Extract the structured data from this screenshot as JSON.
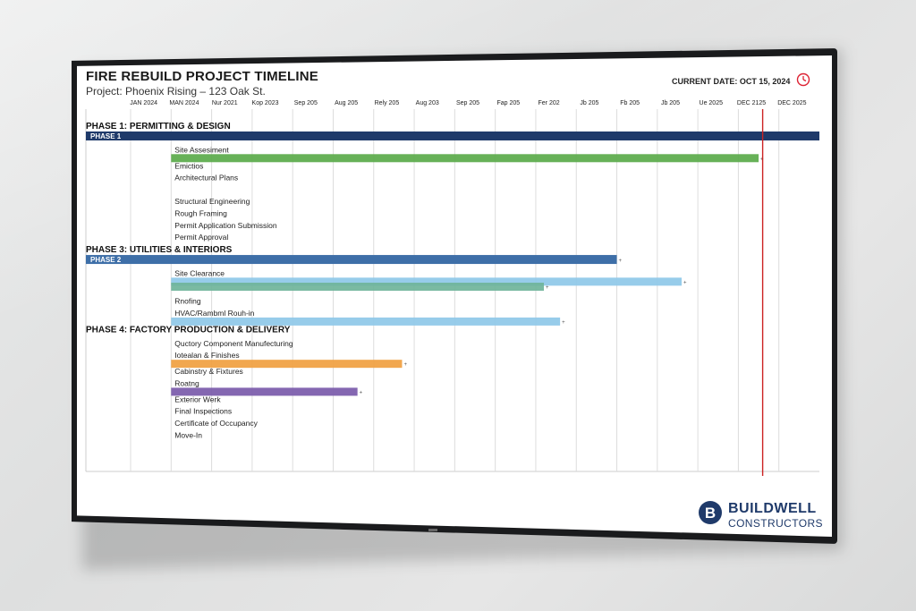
{
  "header": {
    "title": "FIRE REBUILD PROJECT TIMELINE",
    "subtitle": "Project: Phoenix Rising – 123 Oak St.",
    "current_date": "CURRENT DATE: OCT 15, 2024"
  },
  "brand": {
    "logo_letter": "B",
    "name_line1": "BUILDWELL",
    "name_line2": "CONSTRUCTORS",
    "color": "#1f3a6a"
  },
  "colors": {
    "phase_dark": "#1f3a6a",
    "phase_mid": "#3e6fa8",
    "green": "#5aaa4a",
    "light_blue": "#8ec8e8",
    "teal": "#6fb49a",
    "orange": "#f0a040",
    "purple": "#7a5aaa",
    "today_line": "#cc2222"
  },
  "chart_data": {
    "type": "gantt",
    "title": "FIRE REBUILD PROJECT TIMELINE",
    "subtitle": "Project: Phoenix Rising – 123 Oak St.",
    "x_ticks": [
      "JAN 2024",
      "MAN 2024",
      "Nur 2021",
      "Kop 2023",
      "Sep 205",
      "Aug 205",
      "Rely 205",
      "Aug 203",
      "Sep 205",
      "Fap 205",
      "Fer 202",
      "Jb 205",
      "Fb 205",
      "Jb 205",
      "Ue 2025",
      "DEC 2125",
      "DEC 2025"
    ],
    "x_range": [
      0,
      17
    ],
    "today_marker": 15.6,
    "phases": [
      {
        "heading": "PHASE 1: PERMITTING & DESIGN",
        "bar_label": "PHASE 1",
        "bar": [
          0,
          17
        ],
        "color": "#1f3a6a",
        "tasks": [
          {
            "name": "Site Assesiment",
            "bar": [
              1,
              15.5
            ],
            "color": "#5aaa4a"
          },
          {
            "name": "Emictios"
          },
          {
            "name": "Architectural Plans"
          },
          {
            "name": "Structural Engineering"
          },
          {
            "name": "Rough Framing"
          },
          {
            "name": "Permit Application Submission"
          },
          {
            "name": "Permit Approval"
          }
        ]
      },
      {
        "heading": "PHASE 3: UTILITIES & INTERIORS",
        "bar_label": "PHASE 2",
        "bar": [
          0,
          12
        ],
        "color": "#3e6fa8",
        "tasks": [
          {
            "name": "Site Clearance",
            "bar": [
              1,
              13.6
            ],
            "color": "#8ec8e8"
          },
          {
            "name": "",
            "bar": [
              1,
              10.2
            ],
            "color": "#6fb49a"
          },
          {
            "name": "Rnofing"
          },
          {
            "name": "HVAC/Rambml Rouh-in",
            "bar": [
              1,
              10.6
            ],
            "color": "#8ec8e8"
          }
        ]
      },
      {
        "heading": "PHASE 4: FACTORY PRODUCTION & DELIVERY",
        "tasks": [
          {
            "name": "Quctory Component Manufecturing"
          },
          {
            "name": "Iotealan & Finishes",
            "bar": [
              1,
              6.7
            ],
            "color": "#f0a040"
          },
          {
            "name": "Cabinstry & Fixtures"
          },
          {
            "name": "Roatng",
            "bar": [
              1,
              5.6
            ],
            "color": "#7a5aaa"
          },
          {
            "name": "Exterior Werk"
          },
          {
            "name": "Final Inspections"
          },
          {
            "name": "Certificate of Occupancy"
          },
          {
            "name": "Move-In"
          }
        ]
      }
    ]
  }
}
